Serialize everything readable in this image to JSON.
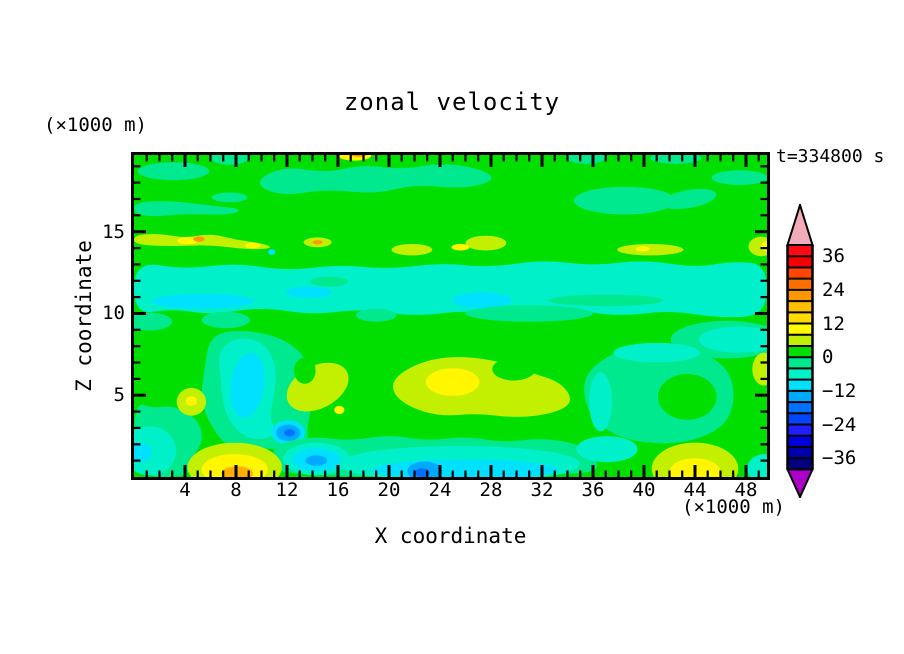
{
  "title": "zonal velocity",
  "top_left_unit": "(×1000 m)",
  "time_label": "t=334800 s",
  "x_axis": {
    "label": "X coordinate",
    "unit": "(×1000 m)",
    "min": 0,
    "max": 49.65,
    "minor_step": 1,
    "major_every": 4,
    "tick_values": [
      4,
      8,
      12,
      16,
      20,
      24,
      28,
      32,
      36,
      40,
      44,
      48
    ]
  },
  "z_axis": {
    "label": "Z coordinate",
    "min": 0,
    "max": 19.69,
    "minor_step": 1,
    "major_every": 5,
    "tick_values": [
      15,
      10,
      5
    ]
  },
  "colorbar": {
    "levels": {
      "min": -40,
      "max": 40,
      "step": 4
    },
    "arrow_top_color": "#F2ACB9",
    "arrow_bottom_color": "#AA00C8",
    "segment_colors": [
      "#FC0A14",
      "#F50000",
      "#FF4600",
      "#FF6E00",
      "#FF9600",
      "#FFBE00",
      "#FFDC00",
      "#FFFA00",
      "#C3F000",
      "#00DF00",
      "#00E98E",
      "#00F0C9",
      "#00E1FF",
      "#00A8FF",
      "#0072FF",
      "#0046FF",
      "#1E1EFF",
      "#0000DC",
      "#0000AA",
      "#000080"
    ],
    "labels": [
      {
        "text": "36",
        "b": 1
      },
      {
        "text": "24",
        "b": 4
      },
      {
        "text": "12",
        "b": 7
      },
      {
        "text": "0",
        "b": 10
      },
      {
        "text": "−12",
        "b": 13
      },
      {
        "text": "−24",
        "b": 16
      },
      {
        "text": "−36",
        "b": 19
      }
    ]
  },
  "chart_data": {
    "type": "heatmap",
    "subtype": "filled-contour",
    "title": "zonal velocity",
    "xlabel": "X coordinate (×1000 m)",
    "ylabel": "Z coordinate (×1000 m)",
    "time_annotation": "t=334800 s",
    "x_range": [
      0,
      49.65
    ],
    "z_range": [
      0,
      19.69
    ],
    "contour_levels_min": -40,
    "contour_levels_max": 40,
    "contour_interval": 4,
    "field_summary": "Mostly weak positive zonal velocity (0-4 band, bright green). A broad negative band (-4 to -12, turquoise/cyan) spans all x at z≈10-13 and along the bottom z≈0-2. Yellow-green to yellow maxima (4-16) near z≈14 streaks, at (x≈4.5,z≈4.6), a large maximum (x≈21-34,z≈4-7) peaking ≈12-16 near (25,5.8), bottom hot spots at (x≈5-11,z≈0-1.5, core 16-20) and (x≈41-47,z≈0-2). Negative minima (-12 to -20, blue) at (x≈12,z≈2.7), (x≈22.8,z≈0.4), (x≈14.3,z≈1).",
    "palette": {
      "green": "#00DF00",
      "sgreen": "#00E98E",
      "turq": "#00F0C9",
      "cyan": "#00E1FF",
      "sky": "#00A8FF",
      "blue": "#0072FF",
      "ygreen": "#C3F000",
      "yellow": "#FFF600",
      "amber": "#FFAF00",
      "orange": "#FF9600"
    },
    "shapes": [
      {
        "t": "rect",
        "c": "green"
      },
      {
        "t": "p",
        "c": "turq",
        "pts": [
          [
            0,
            13.2
          ],
          [
            4,
            12.7
          ],
          [
            8,
            13.1
          ],
          [
            12,
            12.6
          ],
          [
            16,
            13.0
          ],
          [
            20,
            12.7
          ],
          [
            24,
            13.1
          ],
          [
            28,
            12.8
          ],
          [
            32,
            13.3
          ],
          [
            36,
            12.9
          ],
          [
            40,
            13.3
          ],
          [
            44,
            12.8
          ],
          [
            47,
            13.2
          ],
          [
            49.65,
            13.0
          ],
          [
            49.65,
            9.9
          ],
          [
            46,
            9.7
          ],
          [
            42,
            10.2
          ],
          [
            38,
            9.8
          ],
          [
            34,
            10.3
          ],
          [
            30,
            9.8
          ],
          [
            26,
            10.2
          ],
          [
            22,
            9.8
          ],
          [
            18,
            10.3
          ],
          [
            14,
            9.9
          ],
          [
            10,
            10.4
          ],
          [
            6,
            9.9
          ],
          [
            3,
            10.3
          ],
          [
            0,
            9.9
          ]
        ]
      },
      {
        "t": "e",
        "c": "cyan",
        "x": 5.4,
        "z": 10.75,
        "rx": 4.0,
        "rz": 0.45
      },
      {
        "t": "e",
        "c": "cyan",
        "x": 13.7,
        "z": 11.3,
        "rx": 1.8,
        "rz": 0.35
      },
      {
        "t": "e",
        "c": "cyan",
        "x": 27.3,
        "z": 10.8,
        "rx": 2.3,
        "rz": 0.5
      },
      {
        "t": "e",
        "c": "sgreen",
        "x": 15.3,
        "z": 11.95,
        "rx": 1.5,
        "rz": 0.3
      },
      {
        "t": "e",
        "c": "sgreen",
        "x": 37,
        "z": 10.8,
        "rx": 4.5,
        "rz": 0.35
      },
      {
        "t": "e",
        "c": "sgreen",
        "x": 31,
        "z": 10.0,
        "rx": 5,
        "rz": 0.5
      },
      {
        "t": "p",
        "c": "sgreen",
        "pts": [
          [
            9.8,
            18.3
          ],
          [
            12,
            19.0
          ],
          [
            15,
            18.6
          ],
          [
            18,
            19.1
          ],
          [
            21,
            18.8
          ],
          [
            24,
            19.2
          ],
          [
            27,
            18.9
          ],
          [
            28.5,
            18.2
          ],
          [
            26,
            17.6
          ],
          [
            22,
            17.9
          ],
          [
            19,
            17.3
          ],
          [
            15,
            17.6
          ],
          [
            12,
            17.2
          ],
          [
            10,
            17.6
          ]
        ]
      },
      {
        "t": "e",
        "c": "sgreen",
        "x": 3.1,
        "z": 18.7,
        "rx": 2.8,
        "rz": 0.55
      },
      {
        "t": "e",
        "c": "sgreen",
        "x": 7.5,
        "z": 19.6,
        "rx": 1.6,
        "rz": 0.5
      },
      {
        "t": "p",
        "c": "sgreen",
        "pts": [
          [
            0,
            16.8
          ],
          [
            3,
            16.9
          ],
          [
            6,
            16.6
          ],
          [
            8.6,
            16.4
          ],
          [
            7.5,
            16.0
          ],
          [
            4,
            16.1
          ],
          [
            1.5,
            15.9
          ],
          [
            0,
            16.1
          ]
        ]
      },
      {
        "t": "e",
        "c": "sgreen",
        "x": 38.5,
        "z": 16.9,
        "rx": 4.0,
        "rz": 0.85
      },
      {
        "t": "e",
        "c": "sgreen",
        "x": 43.5,
        "z": 17.0,
        "rx": 2.2,
        "rz": 0.55,
        "rot": -10
      },
      {
        "t": "e",
        "c": "sgreen",
        "x": 35.5,
        "z": 19.6,
        "rx": 1.6,
        "rz": 0.45
      },
      {
        "t": "e",
        "c": "sgreen",
        "x": 42.5,
        "z": 19.5,
        "rx": 2.0,
        "rz": 0.35
      },
      {
        "t": "e",
        "c": "sgreen",
        "x": 7.5,
        "z": 17.1,
        "rx": 1.4,
        "rz": 0.3
      },
      {
        "t": "e",
        "c": "sgreen",
        "x": 47.5,
        "z": 18.3,
        "rx": 2.2,
        "rz": 0.45
      },
      {
        "t": "p",
        "c": "ygreen",
        "pts": [
          [
            0,
            14.8
          ],
          [
            2,
            14.9
          ],
          [
            4,
            14.6
          ],
          [
            6,
            14.9
          ],
          [
            8,
            14.5
          ],
          [
            10,
            14.3
          ],
          [
            11,
            14.0
          ],
          [
            9,
            13.9
          ],
          [
            6,
            14.2
          ],
          [
            3,
            14.1
          ],
          [
            0,
            14.2
          ]
        ]
      },
      {
        "t": "e",
        "c": "yellow",
        "x": 4.2,
        "z": 14.45,
        "rx": 0.8,
        "rz": 0.22
      },
      {
        "t": "e",
        "c": "orange",
        "x": 5.1,
        "z": 14.55,
        "rx": 0.45,
        "rz": 0.16
      },
      {
        "t": "e",
        "c": "yellow",
        "x": 9.3,
        "z": 14.15,
        "rx": 0.6,
        "rz": 0.18
      },
      {
        "t": "e",
        "c": "ygreen",
        "x": 14.4,
        "z": 14.35,
        "rx": 1.1,
        "rz": 0.3
      },
      {
        "t": "e",
        "c": "orange",
        "x": 14.4,
        "z": 14.35,
        "rx": 0.4,
        "rz": 0.13
      },
      {
        "t": "e",
        "c": "ygreen",
        "x": 21.8,
        "z": 13.9,
        "rx": 1.6,
        "rz": 0.35
      },
      {
        "t": "e",
        "c": "ygreen",
        "x": 27.6,
        "z": 14.3,
        "rx": 1.6,
        "rz": 0.45
      },
      {
        "t": "e",
        "c": "yellow",
        "x": 25.6,
        "z": 14.05,
        "rx": 0.7,
        "rz": 0.2
      },
      {
        "t": "e",
        "c": "ygreen",
        "x": 40.5,
        "z": 13.9,
        "rx": 2.6,
        "rz": 0.35
      },
      {
        "t": "e",
        "c": "yellow",
        "x": 39.9,
        "z": 13.95,
        "rx": 0.55,
        "rz": 0.16
      },
      {
        "t": "e",
        "c": "ygreen",
        "x": 49.2,
        "z": 14.1,
        "rx": 1.0,
        "rz": 0.6
      },
      {
        "t": "e",
        "c": "yellow",
        "x": 49.6,
        "z": 14.1,
        "rx": 0.4,
        "rz": 0.3
      },
      {
        "t": "e",
        "c": "yellow",
        "x": 17.3,
        "z": 19.65,
        "rx": 1.3,
        "rz": 0.3
      },
      {
        "t": "e",
        "c": "orange",
        "x": 17.6,
        "z": 19.75,
        "rx": 0.7,
        "rz": 0.18
      },
      {
        "t": "e",
        "c": "cyan",
        "x": 10.8,
        "z": 13.75,
        "rx": 0.28,
        "rz": 0.18
      },
      {
        "t": "e",
        "c": "sgreen",
        "x": 1.2,
        "z": 9.5,
        "rx": 1.8,
        "rz": 0.55
      },
      {
        "t": "e",
        "c": "sgreen",
        "x": 7.2,
        "z": 9.6,
        "rx": 1.9,
        "rz": 0.5
      },
      {
        "t": "e",
        "c": "sgreen",
        "x": 19,
        "z": 9.9,
        "rx": 1.6,
        "rz": 0.4
      },
      {
        "t": "e",
        "c": "sgreen",
        "x": 46.5,
        "z": 8.4,
        "rx": 4.4,
        "rz": 1.15
      },
      {
        "t": "e",
        "c": "turq",
        "x": 47.5,
        "z": 8.4,
        "rx": 3.2,
        "rz": 0.8
      },
      {
        "t": "p",
        "c": "sgreen",
        "pts": [
          [
            0,
            4.6
          ],
          [
            1.5,
            4.2
          ],
          [
            3,
            4.4
          ],
          [
            5,
            3.6
          ],
          [
            5.5,
            2.2
          ],
          [
            4.2,
            0.8
          ],
          [
            4.3,
            0
          ],
          [
            0,
            0
          ]
        ]
      },
      {
        "t": "e",
        "c": "turq",
        "x": 1.2,
        "z": 1.6,
        "rx": 2.1,
        "rz": 1.5
      },
      {
        "t": "e",
        "c": "cyan",
        "x": 0.5,
        "z": 1.5,
        "rx": 0.9,
        "rz": 0.55
      },
      {
        "t": "p",
        "c": "sgreen",
        "pts": [
          [
            6,
            8.8
          ],
          [
            9,
            9.0
          ],
          [
            12,
            8.4
          ],
          [
            13.8,
            7.0
          ],
          [
            14.2,
            5.0
          ],
          [
            13.5,
            3.0
          ],
          [
            13.8,
            1.6
          ],
          [
            11,
            1.8
          ],
          [
            8,
            1.5
          ],
          [
            6.5,
            2.5
          ],
          [
            5.2,
            4.5
          ],
          [
            5.5,
            6.5
          ]
        ]
      },
      {
        "t": "p",
        "c": "turq",
        "pts": [
          [
            7.2,
            8.2
          ],
          [
            8.8,
            8.6
          ],
          [
            10.5,
            8.0
          ],
          [
            11.2,
            6.5
          ],
          [
            11.0,
            5.0
          ],
          [
            10.6,
            3.6
          ],
          [
            11.3,
            2.6
          ],
          [
            9.5,
            2.2
          ],
          [
            8.0,
            2.8
          ],
          [
            7.0,
            4.2
          ],
          [
            6.8,
            6.0
          ],
          [
            6.6,
            7.4
          ]
        ]
      },
      {
        "t": "e",
        "c": "cyan",
        "x": 8.9,
        "z": 5.6,
        "rx": 1.3,
        "rz": 2.0,
        "rot": 8
      },
      {
        "t": "e",
        "c": "cyan",
        "x": 12.1,
        "z": 2.7,
        "rx": 1.3,
        "rz": 0.75
      },
      {
        "t": "e",
        "c": "sky",
        "x": 12.1,
        "z": 2.7,
        "rx": 0.95,
        "rz": 0.5
      },
      {
        "t": "e",
        "c": "blue",
        "x": 12.2,
        "z": 2.7,
        "rx": 0.42,
        "rz": 0.22
      },
      {
        "t": "e",
        "c": "ygreen",
        "x": 4.5,
        "z": 4.6,
        "rx": 1.15,
        "rz": 0.85
      },
      {
        "t": "e",
        "c": "yellow",
        "x": 4.5,
        "z": 4.65,
        "rx": 0.45,
        "rz": 0.3
      },
      {
        "t": "e",
        "c": "ygreen",
        "x": 14.4,
        "z": 5.5,
        "rx": 2.6,
        "rz": 1.3,
        "rot": -28
      },
      {
        "t": "e",
        "c": "green",
        "x": 13.4,
        "z": 6.5,
        "rx": 0.85,
        "rz": 0.8
      },
      {
        "t": "e",
        "c": "yellow",
        "x": 16.1,
        "z": 4.1,
        "rx": 0.4,
        "rz": 0.25
      },
      {
        "t": "p",
        "c": "ygreen",
        "pts": [
          [
            20.5,
            6.2
          ],
          [
            23,
            7.2
          ],
          [
            26,
            7.4
          ],
          [
            29,
            7.0
          ],
          [
            31,
            6.4
          ],
          [
            33.5,
            5.8
          ],
          [
            34.5,
            4.6
          ],
          [
            33,
            3.9
          ],
          [
            30,
            3.6
          ],
          [
            27,
            3.9
          ],
          [
            24,
            3.7
          ],
          [
            21.5,
            4.3
          ],
          [
            20.2,
            5.2
          ]
        ]
      },
      {
        "t": "e",
        "c": "yellow",
        "x": 25.0,
        "z": 5.8,
        "rx": 2.1,
        "rz": 0.85
      },
      {
        "t": "e",
        "c": "green",
        "x": 29.8,
        "z": 6.6,
        "rx": 1.7,
        "rz": 0.7
      },
      {
        "t": "p",
        "c": "sgreen",
        "pts": [
          [
            35.5,
            6.5
          ],
          [
            38,
            7.8
          ],
          [
            41,
            8.2
          ],
          [
            44,
            7.8
          ],
          [
            46.5,
            6.8
          ],
          [
            47.2,
            5.0
          ],
          [
            46.5,
            3.2
          ],
          [
            44,
            2.2
          ],
          [
            41,
            2.0
          ],
          [
            38,
            2.4
          ],
          [
            36,
            3.5
          ],
          [
            35.2,
            5.0
          ]
        ]
      },
      {
        "t": "e",
        "c": "turq",
        "x": 41,
        "z": 7.6,
        "rx": 3.4,
        "rz": 0.6
      },
      {
        "t": "e",
        "c": "turq",
        "x": 36.6,
        "z": 4.6,
        "rx": 0.9,
        "rz": 1.8
      },
      {
        "t": "e",
        "c": "green",
        "x": 43.4,
        "z": 4.9,
        "rx": 2.3,
        "rz": 1.4
      },
      {
        "t": "e",
        "c": "ygreen",
        "x": 49.4,
        "z": 6.6,
        "rx": 0.9,
        "rz": 1.0
      },
      {
        "t": "p",
        "c": "sgreen",
        "pts": [
          [
            11,
            2.0
          ],
          [
            14,
            2.5
          ],
          [
            17,
            2.2
          ],
          [
            20,
            2.6
          ],
          [
            23,
            2.2
          ],
          [
            26,
            2.5
          ],
          [
            29,
            2.1
          ],
          [
            32,
            2.4
          ],
          [
            35,
            2.0
          ],
          [
            36.5,
            1.0
          ],
          [
            36,
            0
          ],
          [
            11.5,
            0
          ],
          [
            10.8,
            1.0
          ]
        ]
      },
      {
        "t": "e",
        "c": "turq",
        "x": 25.5,
        "z": 0.8,
        "rx": 9.5,
        "rz": 1.1
      },
      {
        "t": "e",
        "c": "cyan",
        "x": 26,
        "z": 0.45,
        "rx": 7.3,
        "rz": 0.6
      },
      {
        "t": "e",
        "c": "sky",
        "x": 22.8,
        "z": 0.35,
        "rx": 1.35,
        "rz": 0.6
      },
      {
        "t": "e",
        "c": "blue",
        "x": 22.6,
        "z": 0.25,
        "rx": 0.6,
        "rz": 0.28
      },
      {
        "t": "e",
        "c": "ygreen",
        "x": 7.9,
        "z": 0.6,
        "rx": 3.7,
        "rz": 1.5
      },
      {
        "t": "e",
        "c": "yellow",
        "x": 7.9,
        "z": 0.45,
        "rx": 2.6,
        "rz": 0.95
      },
      {
        "t": "e",
        "c": "amber",
        "x": 8.1,
        "z": 0.2,
        "rx": 1.25,
        "rz": 0.45
      },
      {
        "t": "e",
        "c": "turq",
        "x": 14.3,
        "z": 1.1,
        "rx": 2.6,
        "rz": 1.0
      },
      {
        "t": "e",
        "c": "cyan",
        "x": 14.3,
        "z": 1.05,
        "rx": 1.9,
        "rz": 0.7
      },
      {
        "t": "e",
        "c": "sky",
        "x": 14.3,
        "z": 1.0,
        "rx": 0.85,
        "rz": 0.32
      },
      {
        "t": "e",
        "c": "ygreen",
        "x": 44,
        "z": 0.5,
        "rx": 3.4,
        "rz": 1.6
      },
      {
        "t": "e",
        "c": "yellow",
        "x": 44,
        "z": 0.3,
        "rx": 2.0,
        "rz": 0.85
      },
      {
        "t": "e",
        "c": "turq",
        "x": 49.4,
        "z": 0.5,
        "rx": 1.3,
        "rz": 0.9
      },
      {
        "t": "e",
        "c": "turq",
        "x": 37.1,
        "z": 1.7,
        "rx": 2.4,
        "rz": 0.8
      }
    ]
  }
}
